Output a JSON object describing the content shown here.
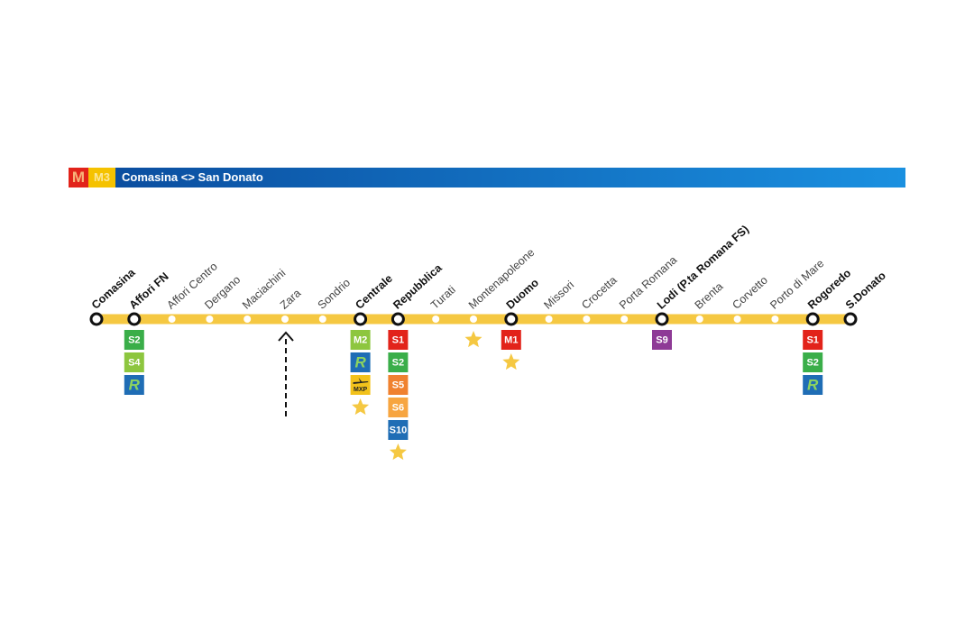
{
  "header": {
    "logo": "M",
    "line": "M3",
    "title": "Comasina <> San Donato"
  },
  "stations": [
    {
      "name": "Comasina",
      "major": true,
      "connections": []
    },
    {
      "name": "Affori FN",
      "major": true,
      "connections": [
        {
          "label": "S2",
          "color": "#3aae49"
        },
        {
          "label": "S4",
          "color": "#8dc63f"
        },
        {
          "icon": "rail",
          "label": "R",
          "color": "#1f6db5"
        }
      ]
    },
    {
      "name": "Affori Centro",
      "major": false,
      "connections": []
    },
    {
      "name": "Dergano",
      "major": false,
      "connections": []
    },
    {
      "name": "Maciachini",
      "major": false,
      "connections": []
    },
    {
      "name": "Zara",
      "major": false,
      "connections": []
    },
    {
      "name": "Sondrio",
      "major": false,
      "connections": []
    },
    {
      "name": "Centrale",
      "major": true,
      "connections": [
        {
          "label": "M2",
          "color": "#8dc63f"
        },
        {
          "icon": "rail",
          "label": "R",
          "color": "#1f6db5"
        },
        {
          "icon": "airport",
          "label": "MXP",
          "color": "#f2c21b"
        },
        {
          "icon": "star",
          "color": "#f5c842"
        }
      ]
    },
    {
      "name": "Repubblica",
      "major": true,
      "connections": [
        {
          "label": "S1",
          "color": "#e2231a"
        },
        {
          "label": "S2",
          "color": "#3aae49"
        },
        {
          "label": "S5",
          "color": "#f0812f"
        },
        {
          "label": "S6",
          "color": "#f7a540"
        },
        {
          "label": "S10",
          "color": "#1f6db5"
        },
        {
          "icon": "star",
          "color": "#f5c842"
        }
      ]
    },
    {
      "name": "Turati",
      "major": false,
      "connections": []
    },
    {
      "name": "Montenapoleone",
      "major": false,
      "connections": [
        {
          "icon": "star",
          "color": "#f5c842"
        }
      ]
    },
    {
      "name": "Duomo",
      "major": true,
      "connections": [
        {
          "label": "M1",
          "color": "#e2231a"
        },
        {
          "icon": "star",
          "color": "#f5c842"
        }
      ]
    },
    {
      "name": "Missori",
      "major": false,
      "connections": []
    },
    {
      "name": "Crocetta",
      "major": false,
      "connections": []
    },
    {
      "name": "Porta Romana",
      "major": false,
      "connections": []
    },
    {
      "name": "Lodi (P.ta Romana FS)",
      "major": true,
      "connections": [
        {
          "label": "S9",
          "color": "#8e3a96"
        }
      ]
    },
    {
      "name": "Brenta",
      "major": false,
      "connections": []
    },
    {
      "name": "Corvetto",
      "major": false,
      "connections": []
    },
    {
      "name": "Porto di Mare",
      "major": false,
      "connections": []
    },
    {
      "name": "Rogoredo",
      "major": true,
      "connections": [
        {
          "label": "S1",
          "color": "#e2231a"
        },
        {
          "label": "S2",
          "color": "#3aae49"
        },
        {
          "icon": "rail",
          "label": "R",
          "color": "#1f6db5"
        }
      ]
    },
    {
      "name": "S.Donato",
      "major": true,
      "connections": []
    }
  ]
}
